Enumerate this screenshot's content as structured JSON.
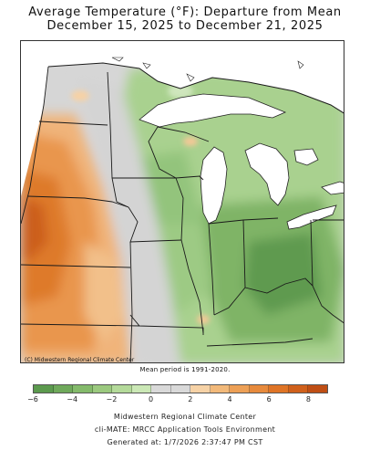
{
  "title": {
    "line1": "Average Temperature (°F): Departure from Mean",
    "line2": "December 15, 2025 to December 21, 2025"
  },
  "map": {
    "credit": "(C) Midwestern Regional Climate Center"
  },
  "mean_period": "Mean period is 1991-2020.",
  "legend": {
    "tick_labels": [
      "−6",
      "−4",
      "−2",
      "0",
      "2",
      "4",
      "6",
      "8"
    ],
    "colors": [
      "#5c9a4e",
      "#6fa95b",
      "#84ba6b",
      "#9bc97f",
      "#b4da9a",
      "#cbe8b6",
      "#d9d9d9",
      "#d9d9d9",
      "#f6d2a6",
      "#f2b97a",
      "#eda056",
      "#e78a3c",
      "#df7426",
      "#d0601b",
      "#bf4e14"
    ]
  },
  "footer": {
    "line1": "Midwestern Regional Climate Center",
    "line2": "cli-MATE: MRCC Application Tools Environment",
    "line3": "Generated at: 1/7/2026 2:37:47 PM CST"
  }
}
